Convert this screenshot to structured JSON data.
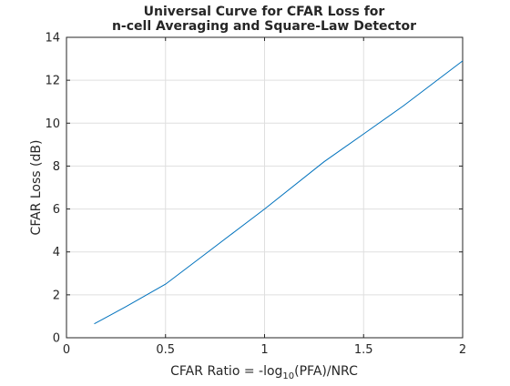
{
  "chart_data": {
    "type": "line",
    "title_lines": [
      "Universal Curve for CFAR Loss for",
      "n-cell Averaging and Square-Law Detector"
    ],
    "xlabel_prefix": "CFAR Ratio = -log",
    "xlabel_subscript": "10",
    "xlabel_suffix": "(PFA)/NRC",
    "ylabel": "CFAR Loss (dB)",
    "xlim": [
      0,
      2
    ],
    "ylim": [
      0,
      14
    ],
    "x_ticks": [
      0,
      0.5,
      1,
      1.5,
      2
    ],
    "x_tick_labels": [
      "0",
      "0.5",
      "1",
      "1.5",
      "2"
    ],
    "y_ticks": [
      0,
      2,
      4,
      6,
      8,
      10,
      12,
      14
    ],
    "y_tick_labels": [
      "0",
      "2",
      "4",
      "6",
      "8",
      "10",
      "12",
      "14"
    ],
    "grid": true,
    "series": [
      {
        "color": "#0072bd",
        "x": [
          0.14,
          0.3,
          0.5,
          0.7,
          1.0,
          1.3,
          1.5,
          1.7,
          2.0
        ],
        "y": [
          0.65,
          1.45,
          2.5,
          3.9,
          6.0,
          8.2,
          9.5,
          10.8,
          12.9
        ]
      }
    ]
  }
}
